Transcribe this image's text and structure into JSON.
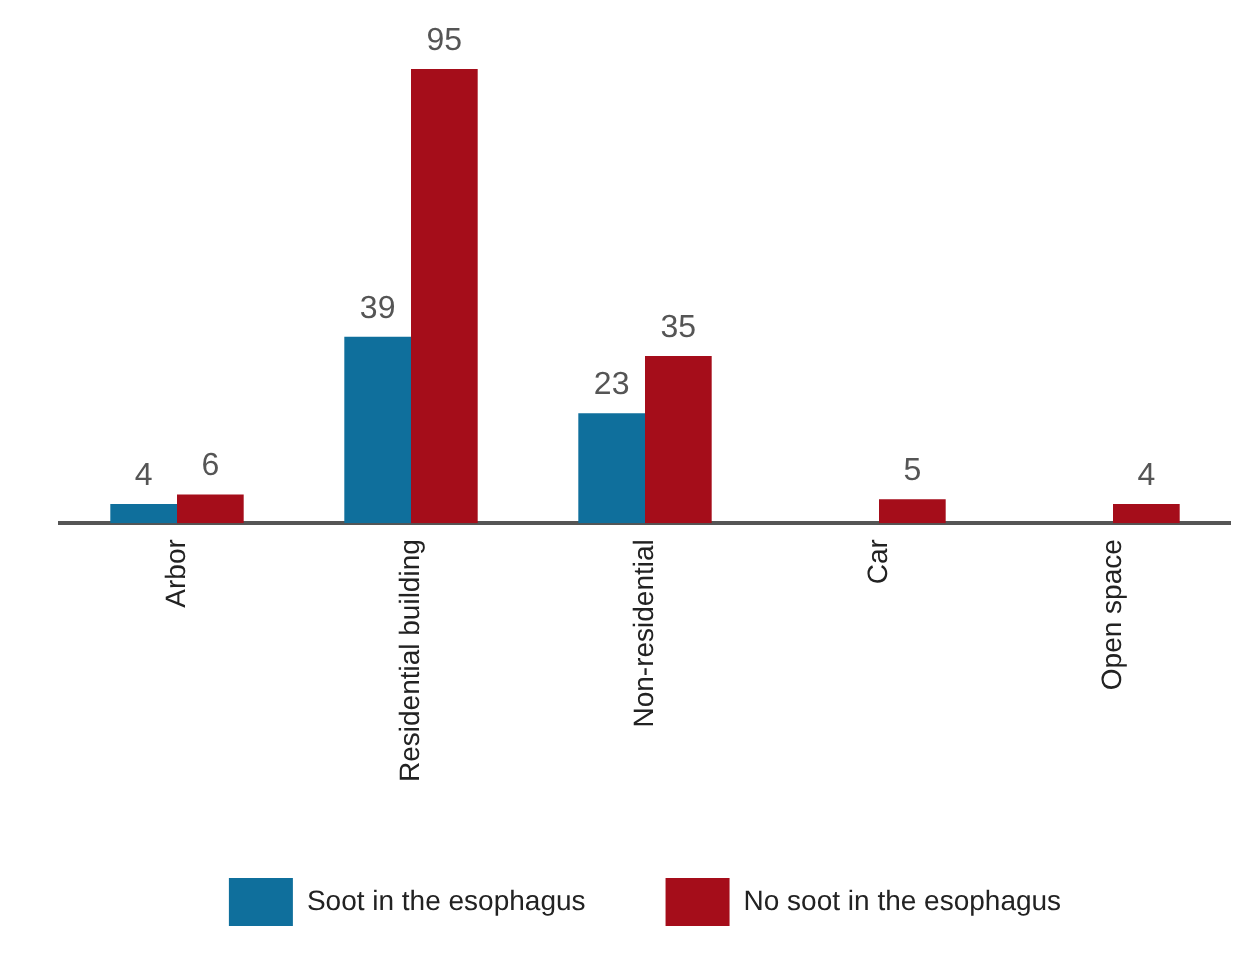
{
  "chart_data": {
    "type": "bar",
    "categories": [
      "Arbor",
      "Residential building",
      "Non-residential",
      "Car",
      "Open space"
    ],
    "series": [
      {
        "name": "Soot in the esophagus",
        "color": "#0f6f9c",
        "values": [
          4,
          39,
          23,
          null,
          null
        ]
      },
      {
        "name": "No soot in the esophagus",
        "color": "#a50d1a",
        "values": [
          6,
          95,
          35,
          5,
          4
        ]
      }
    ],
    "data_labels": true,
    "legend": "bottom",
    "grid": false
  }
}
